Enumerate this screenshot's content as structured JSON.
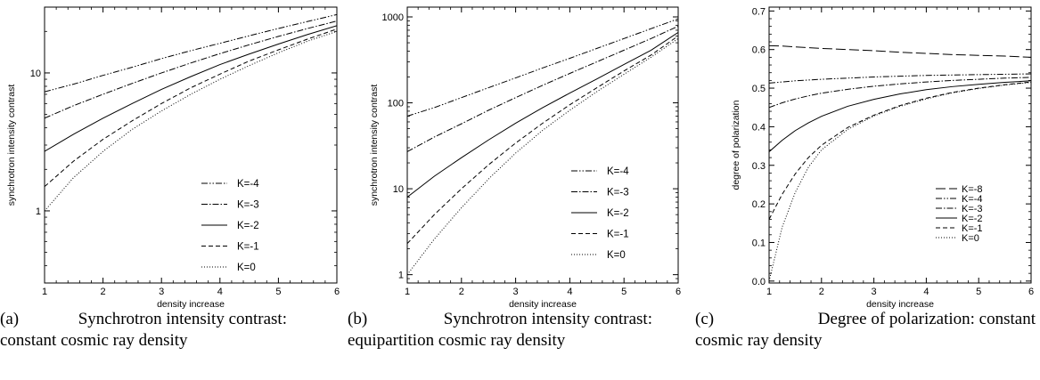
{
  "chart_data": [
    {
      "type": "line",
      "panel_label": "(a)",
      "caption_rest": "Synchrotron intensity contrast:",
      "caption_line2": "constant cosmic ray density",
      "xlabel": "density increase",
      "ylabel": "synchrotron intensity contrast",
      "xlim": [
        1,
        6
      ],
      "ylim": [
        0.3,
        30
      ],
      "yscale": "log",
      "xticks": [
        1,
        2,
        3,
        4,
        5,
        6
      ],
      "yticks": [
        1,
        10
      ],
      "grid": false,
      "legend_position": "lower-right",
      "x": [
        1,
        1.5,
        2,
        2.5,
        3,
        3.5,
        4,
        4.5,
        5,
        5.5,
        6
      ],
      "series": [
        {
          "name": "K=-4",
          "style": "dash-dot-dot",
          "values": [
            7.3,
            8.3,
            9.6,
            11.0,
            12.7,
            14.5,
            16.4,
            18.6,
            21.0,
            23.6,
            26.5
          ]
        },
        {
          "name": "K=-3",
          "style": "dash-dot",
          "values": [
            4.7,
            5.8,
            7.0,
            8.4,
            10.0,
            11.8,
            13.8,
            16.0,
            18.4,
            21.0,
            23.8
          ]
        },
        {
          "name": "K=-2",
          "style": "solid",
          "values": [
            2.7,
            3.6,
            4.7,
            6.0,
            7.6,
            9.4,
            11.5,
            13.7,
            16.2,
            19.0,
            22.0
          ]
        },
        {
          "name": "K=-1",
          "style": "dashed",
          "values": [
            1.5,
            2.3,
            3.3,
            4.5,
            6.0,
            7.8,
            9.8,
            12.2,
            14.7,
            17.6,
            20.8
          ]
        },
        {
          "name": "K=0",
          "style": "dotted",
          "values": [
            1.0,
            1.75,
            2.7,
            3.9,
            5.3,
            7.0,
            9.0,
            11.3,
            14.0,
            17.0,
            20.0
          ]
        }
      ]
    },
    {
      "type": "line",
      "panel_label": "(b)",
      "caption_rest": "Synchrotron intensity contrast:",
      "caption_line2": "equipartition cosmic ray density",
      "xlabel": "density increase",
      "ylabel": "synchrotron intensity contrast",
      "xlim": [
        1,
        6
      ],
      "ylim": [
        0.8,
        1300
      ],
      "yscale": "log",
      "xticks": [
        1,
        2,
        3,
        4,
        5,
        6
      ],
      "yticks": [
        1,
        10,
        100,
        1000
      ],
      "grid": false,
      "legend_position": "lower-right",
      "x": [
        1,
        1.5,
        2,
        2.5,
        3,
        3.5,
        4,
        4.5,
        5,
        5.5,
        6
      ],
      "series": [
        {
          "name": "K=-4",
          "style": "dash-dot-dot",
          "values": [
            70,
            88,
            115,
            150,
            195,
            255,
            330,
            430,
            560,
            730,
            950
          ]
        },
        {
          "name": "K=-3",
          "style": "dash-dot",
          "values": [
            27,
            40,
            57,
            82,
            115,
            160,
            220,
            300,
            410,
            560,
            780
          ]
        },
        {
          "name": "K=-2",
          "style": "solid",
          "values": [
            8,
            14,
            23,
            37,
            58,
            88,
            130,
            190,
            280,
            410,
            660
          ]
        },
        {
          "name": "K=-1",
          "style": "dashed",
          "values": [
            2.3,
            5,
            10,
            19,
            34,
            58,
            95,
            150,
            235,
            360,
            600
          ]
        },
        {
          "name": "K=0",
          "style": "dotted",
          "values": [
            1.0,
            2.6,
            6,
            13,
            26,
            48,
            82,
            135,
            215,
            340,
            560
          ]
        }
      ]
    },
    {
      "type": "line",
      "panel_label": "(c)",
      "caption_rest": "Degree of polarization: constant",
      "caption_line2": "cosmic ray density",
      "xlabel": "density increase",
      "ylabel": "degree of polarization",
      "xlim": [
        1,
        6
      ],
      "ylim": [
        -0.005,
        0.71
      ],
      "yscale": "linear",
      "xticks": [
        1,
        2,
        3,
        4,
        5,
        6
      ],
      "yticks": [
        0.0,
        0.1,
        0.2,
        0.3,
        0.4,
        0.5,
        0.6,
        0.7
      ],
      "ytick_labels": [
        "0.0",
        "0.1",
        "0.2",
        "0.3",
        "0.4",
        "0.5",
        "0.6",
        "0.7"
      ],
      "grid": false,
      "legend_position": "lower-right",
      "x": [
        1,
        1.25,
        1.5,
        1.75,
        2,
        2.5,
        3,
        3.5,
        4,
        4.5,
        5,
        5.5,
        6
      ],
      "series": [
        {
          "name": "K=-8",
          "style": "long-dash",
          "values": [
            0.61,
            0.609,
            0.607,
            0.605,
            0.603,
            0.6,
            0.597,
            0.593,
            0.59,
            0.587,
            0.585,
            0.583,
            0.58
          ]
        },
        {
          "name": "K=-4",
          "style": "dash-dot-dot",
          "values": [
            0.513,
            0.516,
            0.519,
            0.521,
            0.523,
            0.526,
            0.529,
            0.531,
            0.533,
            0.534,
            0.535,
            0.536,
            0.537
          ]
        },
        {
          "name": "K=-3",
          "style": "dash-dot",
          "values": [
            0.45,
            0.462,
            0.472,
            0.48,
            0.487,
            0.497,
            0.505,
            0.511,
            0.516,
            0.52,
            0.523,
            0.526,
            0.528
          ]
        },
        {
          "name": "K=-2",
          "style": "solid",
          "values": [
            0.335,
            0.365,
            0.39,
            0.41,
            0.427,
            0.453,
            0.471,
            0.485,
            0.496,
            0.504,
            0.51,
            0.515,
            0.519
          ]
        },
        {
          "name": "K=-1",
          "style": "dashed",
          "values": [
            0.16,
            0.225,
            0.278,
            0.32,
            0.352,
            0.398,
            0.43,
            0.455,
            0.474,
            0.489,
            0.5,
            0.509,
            0.516
          ]
        },
        {
          "name": "K=0",
          "style": "dotted",
          "values": [
            0.0,
            0.14,
            0.23,
            0.295,
            0.34,
            0.393,
            0.428,
            0.453,
            0.472,
            0.488,
            0.499,
            0.508,
            0.515
          ]
        }
      ]
    }
  ]
}
